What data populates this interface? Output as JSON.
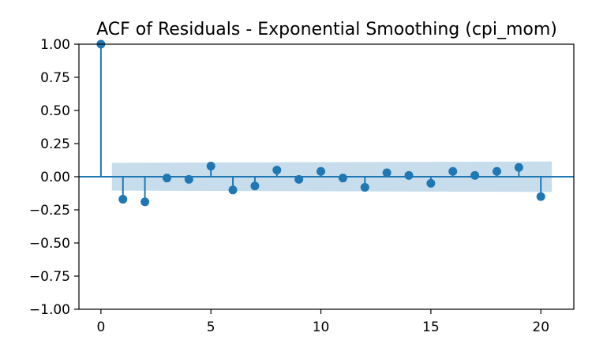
{
  "chart_data": {
    "type": "scatter",
    "subtype": "acf-stem",
    "title": "ACF of Residuals - Exponential Smoothing (cpi_mom)",
    "xlabel": "",
    "ylabel": "",
    "xlim": [
      -1,
      21.5
    ],
    "ylim": [
      -1.0,
      1.0
    ],
    "x_ticks": [
      0,
      5,
      10,
      15,
      20
    ],
    "x_tick_labels": [
      "0",
      "5",
      "10",
      "15",
      "20"
    ],
    "y_ticks": [
      -1.0,
      -0.75,
      -0.5,
      -0.25,
      0.0,
      0.25,
      0.5,
      0.75,
      1.0
    ],
    "y_tick_labels": [
      "−1.00",
      "−0.75",
      "−0.50",
      "−0.25",
      "0.00",
      "0.25",
      "0.50",
      "0.75",
      "1.00"
    ],
    "grid": false,
    "legend": "none",
    "color": "#1f77b4",
    "band_color": "#1f77b4",
    "lags": [
      0,
      1,
      2,
      3,
      4,
      5,
      6,
      7,
      8,
      9,
      10,
      11,
      12,
      13,
      14,
      15,
      16,
      17,
      18,
      19,
      20
    ],
    "values": [
      1.0,
      -0.17,
      -0.19,
      -0.01,
      -0.02,
      0.08,
      -0.1,
      -0.07,
      0.05,
      -0.02,
      0.04,
      -0.01,
      -0.08,
      0.03,
      0.01,
      -0.05,
      0.04,
      0.01,
      0.04,
      0.07,
      -0.15
    ],
    "confidence_band": {
      "x": [
        0.5,
        20.5
      ],
      "upper": [
        0.105,
        0.115
      ],
      "lower": [
        -0.105,
        -0.115
      ]
    }
  }
}
